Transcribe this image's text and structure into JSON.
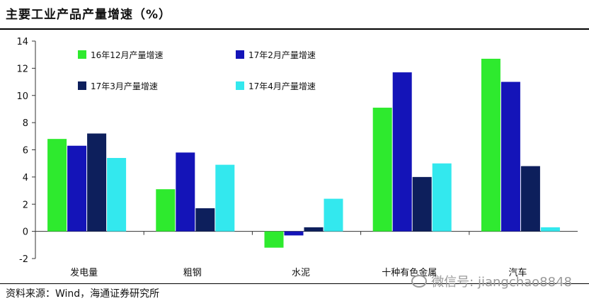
{
  "header": {
    "title": "主要工业产品产量增速（%）"
  },
  "footer": {
    "source": "资料来源：Wind，海通证券研究所",
    "watermark": "微信号: jiangchao8848"
  },
  "colors": {
    "s1": "#2eea2e",
    "s2": "#1414b8",
    "s3": "#0d1f5c",
    "s4": "#33e8ee"
  },
  "chart_data": {
    "type": "bar",
    "title": "主要工业产品产量增速（%）",
    "xlabel": "",
    "ylabel": "",
    "ylim": [
      -2,
      14
    ],
    "yticks": [
      -2,
      0,
      2,
      4,
      6,
      8,
      10,
      12,
      14
    ],
    "categories": [
      "发电量",
      "粗钢",
      "水泥",
      "十种有色金属",
      "汽车"
    ],
    "series": [
      {
        "name": "16年12月产量增速",
        "color": "#2eea2e",
        "values": [
          6.8,
          3.1,
          -1.2,
          9.1,
          12.7
        ]
      },
      {
        "name": "17年2月产量增速",
        "color": "#1414b8",
        "values": [
          6.3,
          5.8,
          -0.3,
          11.7,
          11.0
        ]
      },
      {
        "name": "17年3月产量增速",
        "color": "#0d1f5c",
        "values": [
          7.2,
          1.7,
          0.3,
          4.0,
          4.8
        ]
      },
      {
        "name": "17年4月产量增速",
        "color": "#33e8ee",
        "values": [
          5.4,
          4.9,
          2.4,
          5.0,
          0.3
        ]
      }
    ],
    "legend": "top-left, two columns",
    "grid": false
  }
}
